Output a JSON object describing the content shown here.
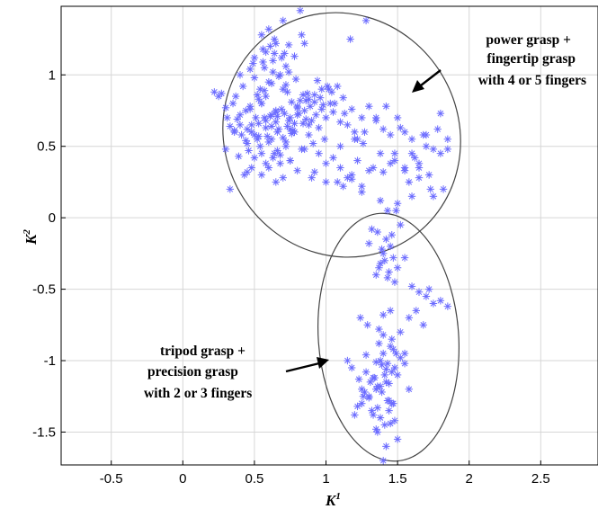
{
  "chart_data": {
    "type": "scatter",
    "title": "",
    "xlabel": "K",
    "xlabel_sup": "1",
    "ylabel": "K",
    "ylabel_sup": "2",
    "xlim": [
      -0.85,
      2.9
    ],
    "ylim": [
      -1.73,
      1.48
    ],
    "xticks": [
      -0.5,
      0,
      0.5,
      1,
      1.5,
      2,
      2.5
    ],
    "xtick_labels": [
      "-0.5",
      "0",
      "0.5",
      "1",
      "1.5",
      "2",
      "2.5"
    ],
    "yticks": [
      -1.5,
      -1,
      -0.5,
      0,
      0.5,
      1
    ],
    "ytick_labels": [
      "-1.5",
      "-1",
      "-0.5",
      "0",
      "0.5",
      "1"
    ],
    "grid": true,
    "marker": "*",
    "marker_color": "#6b6bff",
    "series": [
      {
        "x": [
          0.55,
          0.62,
          0.48,
          0.7,
          0.66,
          0.58,
          0.75,
          0.8,
          0.52,
          0.45,
          0.6,
          0.68,
          0.73,
          0.85,
          0.9,
          0.4,
          0.35,
          0.3,
          0.25,
          0.22,
          0.42,
          0.5,
          0.57,
          0.63,
          0.78,
          0.88,
          0.95,
          1.0,
          0.82,
          0.72,
          0.65,
          0.53,
          0.47,
          0.38,
          0.33,
          0.44,
          0.59,
          0.67,
          0.76,
          0.84,
          0.93,
          0.98,
          1.05,
          1.1,
          0.71,
          0.61,
          0.49,
          0.56,
          0.64,
          0.69,
          0.74,
          0.79,
          0.87,
          0.92,
          0.97,
          0.54,
          0.46,
          0.41,
          0.36,
          0.51,
          0.58,
          0.66,
          0.73,
          0.81,
          0.89,
          0.96,
          1.02,
          0.6,
          0.7,
          0.77,
          0.86,
          0.55,
          0.63,
          0.68,
          0.75,
          0.83,
          0.91,
          0.99,
          0.48,
          0.43,
          0.39,
          0.52,
          0.57,
          0.62,
          0.67,
          0.72,
          0.78,
          0.85,
          0.94,
          1.04,
          0.5,
          0.58,
          0.65,
          0.71,
          0.8,
          0.88,
          0.45,
          0.53,
          0.61,
          0.69,
          0.76,
          0.84,
          0.4,
          0.47,
          0.56,
          0.64,
          0.74,
          0.83,
          0.92,
          1.01,
          0.55,
          0.6,
          0.65,
          0.7,
          0.58,
          0.63,
          0.5,
          0.48,
          0.53,
          0.62,
          0.57,
          0.66,
          0.72,
          0.68,
          0.75,
          0.44,
          0.37,
          0.31,
          0.27,
          0.33,
          1.12,
          1.18,
          1.25,
          1.08,
          1.2,
          1.3,
          1.15,
          1.22,
          1.35,
          1.4,
          1.28,
          1.17,
          1.06,
          1.13,
          1.26,
          1.38,
          1.45,
          1.52,
          1.6,
          1.48,
          1.55,
          1.62,
          1.7,
          1.75,
          1.68,
          1.58,
          1.65,
          1.72,
          1.8,
          1.85,
          1.78,
          1.82,
          1.5,
          1.42,
          1.35,
          1.27,
          1.2,
          1.1,
          1.05,
          1.0,
          1.15,
          1.08,
          1.12,
          1.18,
          1.25,
          1.33,
          1.45,
          1.55,
          1.65,
          1.73,
          1.6,
          1.5,
          1.43,
          1.38,
          0.85,
          0.78,
          0.88,
          0.75,
          0.92,
          0.7,
          0.6,
          0.55,
          0.65,
          0.45,
          0.5,
          0.58,
          0.64,
          0.72,
          0.82,
          0.97,
          1.03,
          0.36,
          0.3,
          0.62,
          0.4,
          0.47,
          0.54,
          0.74,
          0.86,
          0.8,
          1.22,
          1.1,
          0.95,
          1.3,
          1.4,
          1.18,
          1.25,
          1.0,
          0.9,
          0.8,
          0.65,
          0.55,
          1.48,
          1.55,
          1.7,
          1.8,
          1.85,
          1.65,
          1.75,
          1.6,
          1.42,
          1.45,
          1.4,
          1.47,
          1.38,
          1.5,
          1.44,
          1.35,
          1.48,
          1.41,
          1.36,
          1.52,
          1.3,
          1.46,
          1.39,
          1.43,
          1.55,
          1.32,
          1.49,
          1.37,
          1.6,
          1.65,
          1.7,
          1.75,
          1.8,
          1.85,
          1.72,
          1.63,
          1.58,
          1.68,
          1.45,
          1.4,
          1.38,
          1.48,
          1.5,
          1.42,
          1.35,
          1.3,
          1.25,
          1.32,
          1.28,
          1.36,
          1.44,
          1.46,
          1.52,
          1.55,
          1.33,
          1.27,
          1.22,
          1.2,
          1.15,
          1.18,
          1.38,
          1.41,
          1.47,
          1.39,
          1.34,
          1.43,
          1.49,
          1.37,
          1.29,
          1.24,
          1.45,
          1.4,
          1.36,
          1.5,
          1.42,
          1.31,
          1.26,
          1.44,
          1.48,
          1.35,
          1.4,
          1.46,
          1.38,
          1.43,
          1.33,
          1.52,
          1.58,
          1.47,
          1.41,
          1.39,
          1.44,
          1.3,
          1.28,
          1.36,
          1.42,
          1.45,
          1.23,
          1.37,
          1.4,
          1.25,
          1.55,
          1.46,
          1.35
        ],
        "y": [
          0.8,
          0.72,
          0.65,
          0.9,
          0.6,
          0.85,
          0.7,
          0.78,
          0.55,
          0.62,
          0.95,
          1.0,
          0.88,
          0.75,
          0.68,
          0.72,
          0.8,
          0.77,
          0.85,
          0.88,
          0.92,
          0.98,
          1.05,
          1.1,
          0.66,
          0.58,
          0.63,
          0.7,
          0.82,
          0.93,
          0.74,
          0.83,
          0.76,
          0.69,
          0.64,
          0.54,
          0.57,
          0.62,
          0.59,
          0.66,
          0.72,
          0.79,
          0.74,
          0.67,
          1.15,
          1.2,
          1.08,
          1.18,
          1.25,
          1.12,
          1.02,
          0.97,
          0.87,
          0.81,
          0.76,
          0.5,
          0.47,
          0.58,
          0.61,
          0.7,
          0.68,
          0.71,
          0.64,
          0.73,
          0.78,
          0.84,
          0.9,
          0.53,
          0.56,
          0.61,
          0.69,
          0.45,
          0.42,
          0.38,
          0.4,
          0.48,
          0.52,
          0.55,
          0.35,
          0.3,
          0.43,
          0.86,
          0.89,
          0.94,
          0.99,
          1.06,
          1.13,
          1.22,
          0.96,
          0.88,
          0.58,
          0.63,
          0.67,
          0.73,
          0.77,
          0.83,
          0.52,
          0.66,
          0.71,
          0.76,
          0.81,
          0.86,
          1.0,
          1.04,
          1.09,
          1.15,
          1.21,
          1.28,
          0.86,
          0.92,
          1.28,
          1.32,
          1.22,
          1.38,
          1.16,
          1.02,
          1.12,
          0.6,
          0.57,
          0.64,
          0.7,
          0.47,
          0.53,
          0.44,
          0.62,
          0.75,
          0.85,
          0.7,
          0.87,
          0.2,
          0.84,
          0.76,
          0.7,
          0.92,
          0.6,
          0.78,
          0.65,
          0.55,
          0.7,
          0.62,
          1.38,
          1.25,
          0.8,
          0.73,
          0.52,
          0.45,
          0.58,
          0.63,
          0.55,
          0.45,
          0.35,
          0.42,
          0.5,
          0.48,
          0.58,
          0.25,
          0.38,
          0.3,
          0.45,
          0.55,
          0.62,
          0.2,
          0.7,
          0.78,
          0.68,
          0.6,
          0.55,
          0.5,
          0.42,
          0.38,
          0.28,
          0.25,
          0.22,
          0.3,
          0.18,
          0.35,
          0.38,
          0.33,
          0.28,
          0.2,
          0.15,
          0.1,
          0.05,
          0.12,
          0.48,
          0.6,
          0.65,
          0.4,
          0.32,
          0.28,
          0.35,
          0.3,
          0.25,
          0.32,
          0.42,
          0.38,
          0.45,
          0.5,
          1.45,
          0.9,
          0.8,
          0.6,
          0.48,
          0.55,
          0.65,
          0.78,
          0.9,
          0.68,
          0.82,
          0.72,
          0.4,
          0.35,
          0.45,
          0.33,
          0.32,
          0.27,
          0.22,
          0.25,
          0.28,
          0.33,
          0.75,
          0.8,
          0.4,
          0.6,
          0.58,
          0.73,
          0.48,
          0.35,
          0.15,
          0.45,
          -0.15,
          -0.2,
          -0.25,
          -0.28,
          -0.32,
          -0.35,
          -0.38,
          -0.4,
          -0.45,
          -0.3,
          -0.1,
          -0.05,
          -0.18,
          -0.12,
          -0.22,
          -0.42,
          -0.28,
          -0.08,
          0.05,
          -0.35,
          -0.48,
          -0.52,
          -0.55,
          -0.6,
          -0.58,
          -0.62,
          -0.5,
          -0.65,
          -0.7,
          -0.75,
          -0.9,
          -0.95,
          -1.0,
          -1.05,
          -1.1,
          -1.15,
          -1.2,
          -1.25,
          -1.3,
          -1.35,
          -1.08,
          -1.18,
          -1.28,
          -0.85,
          -0.8,
          -1.02,
          -1.12,
          -1.22,
          -1.32,
          -1.38,
          -1.0,
          -1.05,
          -1.4,
          -1.45,
          -1.3,
          -1.22,
          -1.12,
          -1.02,
          -0.95,
          -0.88,
          -0.75,
          -0.7,
          -0.65,
          -0.68,
          -1.5,
          -1.55,
          -1.6,
          -1.15,
          -1.25,
          -1.35,
          -1.42,
          -1.48,
          -0.82,
          -1.08,
          -1.18,
          -1.28,
          -1.38,
          -0.98,
          -1.2,
          -0.92,
          -1.1,
          -1.03,
          -1.16,
          -1.26,
          -0.96,
          -1.33,
          -1.06,
          -1.44,
          -1.13,
          -0.78,
          -1.7,
          -1.2,
          -0.95,
          -1.3,
          -1.01
        ]
      }
    ]
  },
  "annotations": {
    "upper_label": [
      "power grasp +",
      "fingertip grasp",
      "with 4 or 5 fingers"
    ],
    "lower_label": [
      "tripod grasp +",
      "precision grasp",
      "with 2 or 3 fingers"
    ]
  }
}
